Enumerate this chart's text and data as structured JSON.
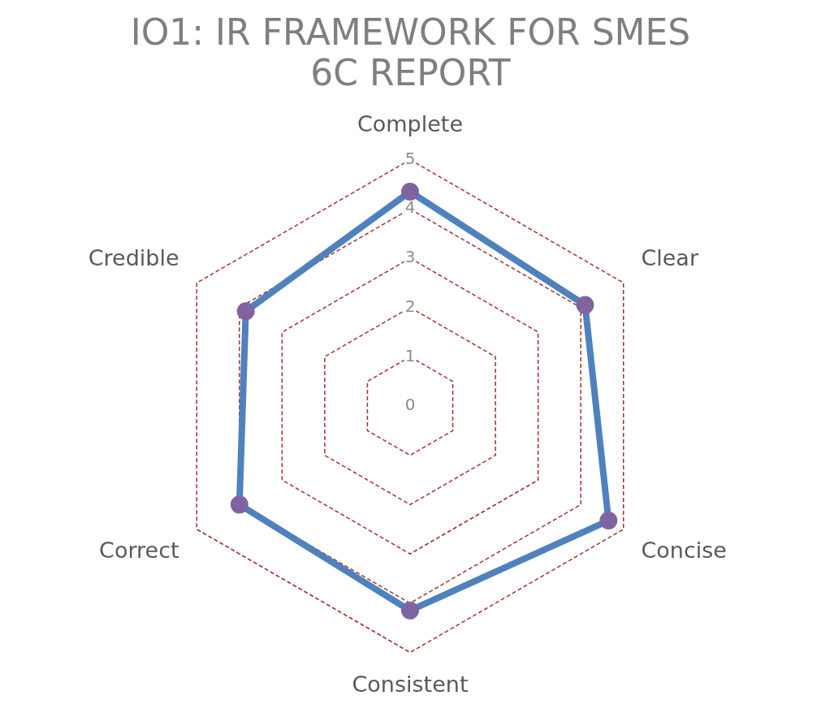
{
  "chart_data": {
    "type": "radar",
    "title": "IO1: IR FRAMEWORK FOR SMES\n6C REPORT",
    "categories": [
      "Complete",
      "Clear",
      "Concise",
      "Consistent",
      "Correct",
      "Credible"
    ],
    "series": [
      {
        "color": "#4f81bd",
        "values": [
          4.35,
          4.1,
          4.65,
          4.15,
          4.0,
          3.85
        ]
      }
    ],
    "ylim": [
      0,
      5
    ],
    "yticks": [
      0,
      1,
      2,
      3,
      4,
      5
    ],
    "grid": true,
    "line_style": "solid",
    "marker": "circle",
    "legend": false
  }
}
